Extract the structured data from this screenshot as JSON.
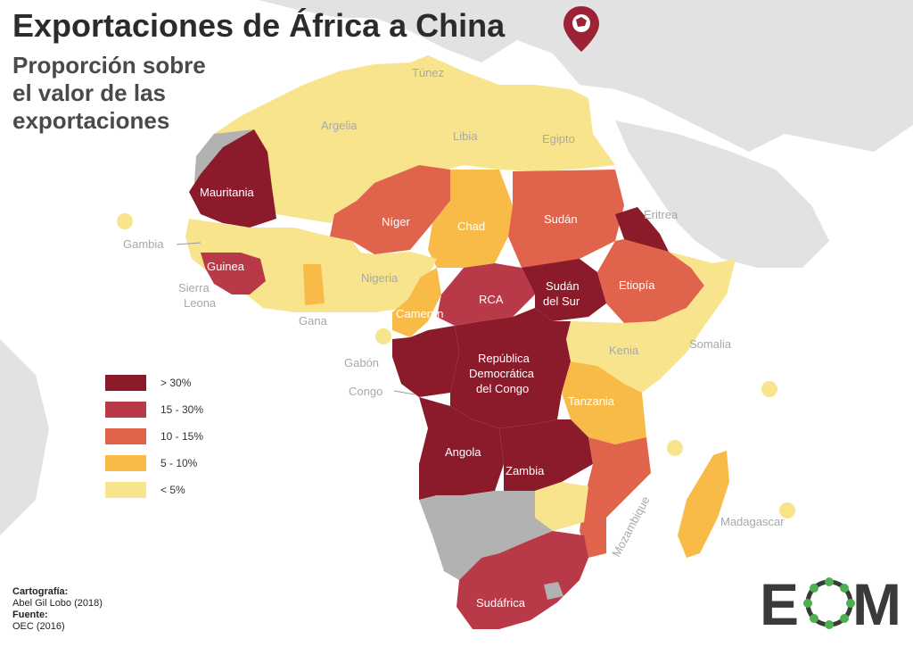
{
  "title": "Exportaciones de África a China",
  "subtitle": [
    "Proporción sobre",
    "el valor de las",
    "exportaciones"
  ],
  "legend": [
    {
      "label": "> 30%",
      "color": "#8b1a2b"
    },
    {
      "label": "15 - 30%",
      "color": "#b83a48"
    },
    {
      "label": "10 - 15%",
      "color": "#e0634c"
    },
    {
      "label": "5 - 10%",
      "color": "#f9bb48"
    },
    {
      "label": "< 5%",
      "color": "#f8e48c"
    }
  ],
  "colors": {
    "no_data": "#b2b2b2",
    "other_land": "#e2e2e2",
    "sea": "#ffffff",
    "pin": "#9b2335"
  },
  "countries": {
    "mauritania": "Mauritania",
    "niger": "Níger",
    "chad": "Chad",
    "sudan": "Sudán",
    "eritrea": "Eritrea",
    "guinea": "Guinea",
    "sierra_leona": [
      "Sierra",
      "Leona"
    ],
    "gambia": "Gambia",
    "nigeria": "Nigeria",
    "gana": "Gana",
    "camerun": "Camerún",
    "rca": "RCA",
    "sudan_sur": [
      "Sudán",
      "del Sur"
    ],
    "etiopia": "Etiopía",
    "somalia": "Somalia",
    "gabon": "Gabón",
    "congo": "Congo",
    "rdc": [
      "República",
      "Democrática",
      "del Congo"
    ],
    "kenia": "Kenia",
    "tanzania": "Tanzania",
    "angola": "Angola",
    "zambia": "Zambia",
    "mozambique": "Mozambique",
    "madagascar": "Madagascar",
    "sudafrica": "Sudáfrica",
    "tunez": "Túnez",
    "argelia": "Argelia",
    "libia": "Libia",
    "egipto": "Egipto"
  },
  "credits": {
    "carto_label": "Cartografía:",
    "carto_value": "Abel Gil Lobo (2018)",
    "source_label": "Fuente:",
    "source_value": "OEC (2016)"
  },
  "logo_text": {
    "left": "E",
    "right": "M"
  }
}
